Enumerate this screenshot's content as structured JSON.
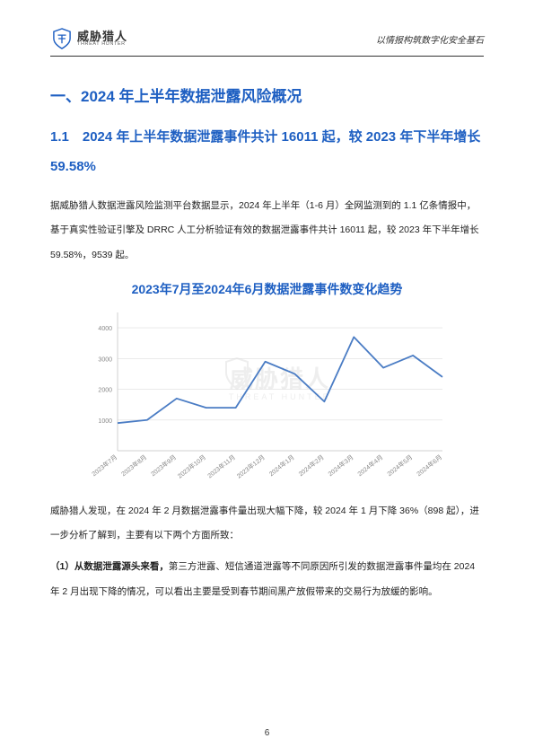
{
  "header": {
    "logo_cn": "威胁猎人",
    "logo_en": "THREAT HUNTER",
    "tagline": "以情报构筑数字化安全基石"
  },
  "h1": "一、2024 年上半年数据泄露风险概况",
  "h2": "1.1　2024 年上半年数据泄露事件共计 16011 起，较 2023 年下半年增长 59.58%",
  "para1": "据威胁猎人数据泄露风险监测平台数据显示，2024 年上半年（1-6 月）全网监测到的 1.1 亿条情报中，基于真实性验证引擎及 DRRC 人工分析验证有效的数据泄露事件共计 16011 起，较 2023 年下半年增长 59.58%，9539 起。",
  "chart": {
    "title": "2023年7月至2024年6月数据泄露事件数变化趋势",
    "type": "line",
    "categories": [
      "2023年7月",
      "2023年8月",
      "2023年9月",
      "2023年10月",
      "2023年11月",
      "2023年12月",
      "2024年1月",
      "2024年2月",
      "2024年3月",
      "2024年4月",
      "2024年5月",
      "2024年6月"
    ],
    "values": [
      900,
      1000,
      1700,
      1400,
      1400,
      2900,
      2500,
      1600,
      3700,
      2700,
      3100,
      2400
    ],
    "ylim": [
      0,
      4500
    ],
    "ytick_step": 1000,
    "yticks": [
      1000,
      2000,
      3000,
      4000
    ],
    "line_color": "#4a7cc4",
    "grid_color": "#dddddd",
    "axis_color": "#d0d0d0",
    "label_color": "#888888",
    "background_color": "#ffffff",
    "label_fontsize": 7,
    "watermark_text_cn": "威胁猎人",
    "watermark_text_en": "THREAT HUNTER",
    "watermark_color": "#eeeeee"
  },
  "para2": "威胁猎人发现，在 2024 年 2 月数据泄露事件量出现大幅下降，较 2024 年 1 月下降 36%（898 起），进一步分析了解到，主要有以下两个方面所致：",
  "para3_bold": "（1）从数据泄露源头来看，",
  "para3_rest": "第三方泄露、短信通道泄露等不同原因所引发的数据泄露事件量均在 2024 年 2 月出现下降的情况，可以看出主要是受到春节期间黑产放假带来的交易行为放缓的影响。",
  "page_number": "6"
}
